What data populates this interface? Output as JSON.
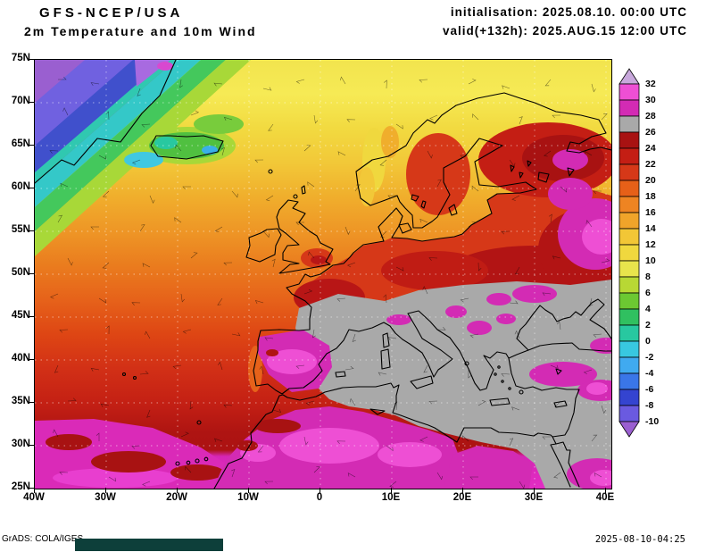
{
  "header": {
    "model": "GFS-NCEP/USA",
    "subtitle": "2m Temperature and 10m Wind",
    "init": "initialisation: 2025.08.10. 00:00 UTC",
    "valid": "valid(+132h): 2025.AUG.15 12:00 UTC"
  },
  "axes": {
    "lat": [
      "75N",
      "70N",
      "65N",
      "60N",
      "55N",
      "50N",
      "45N",
      "40N",
      "35N",
      "30N",
      "25N"
    ],
    "lon": [
      "40W",
      "30W",
      "20W",
      "10W",
      "0",
      "10E",
      "20E",
      "30E",
      "40E"
    ]
  },
  "colorbar": {
    "labels": [
      "32",
      "30",
      "28",
      "26",
      "24",
      "22",
      "20",
      "18",
      "16",
      "14",
      "12",
      "10",
      "8",
      "6",
      "4",
      "2",
      "0",
      "-2",
      "-4",
      "-6",
      "-8",
      "-10"
    ],
    "over_color": "#c8a8dc",
    "under_color": "#9a5fd0",
    "colors_top_to_bottom": [
      "#ee4fd4",
      "#d32bb4",
      "#a9a9a9",
      "#a81212",
      "#c41e14",
      "#d63818",
      "#e66018",
      "#ee8422",
      "#f0a42a",
      "#f2c636",
      "#f0d83e",
      "#e8e44c",
      "#b8d834",
      "#6cc832",
      "#30c060",
      "#28c8a0",
      "#38c8e0",
      "#40aaf0",
      "#3a76e8",
      "#3444d0",
      "#6a5ae0"
    ]
  },
  "footer": {
    "credit": "GrADS: COLA/IGES",
    "timestamp": "2025-08-10-04:25"
  },
  "chart_data": {
    "type": "filled_contour_map",
    "title": "2m Temperature and 10m Wind",
    "model": "GFS-NCEP/USA",
    "region_lon_ticks": [
      "40W",
      "30W",
      "20W",
      "10W",
      "0",
      "10E",
      "20E",
      "30E",
      "40E"
    ],
    "region_lat_ticks": [
      "75N",
      "70N",
      "65N",
      "60N",
      "55N",
      "50N",
      "45N",
      "40N",
      "35N",
      "30N",
      "25N"
    ],
    "temperature_scale_degC": [
      32,
      30,
      28,
      26,
      24,
      22,
      20,
      18,
      16,
      14,
      12,
      10,
      8,
      6,
      4,
      2,
      0,
      -2,
      -4,
      -6,
      -8,
      -10
    ]
  }
}
